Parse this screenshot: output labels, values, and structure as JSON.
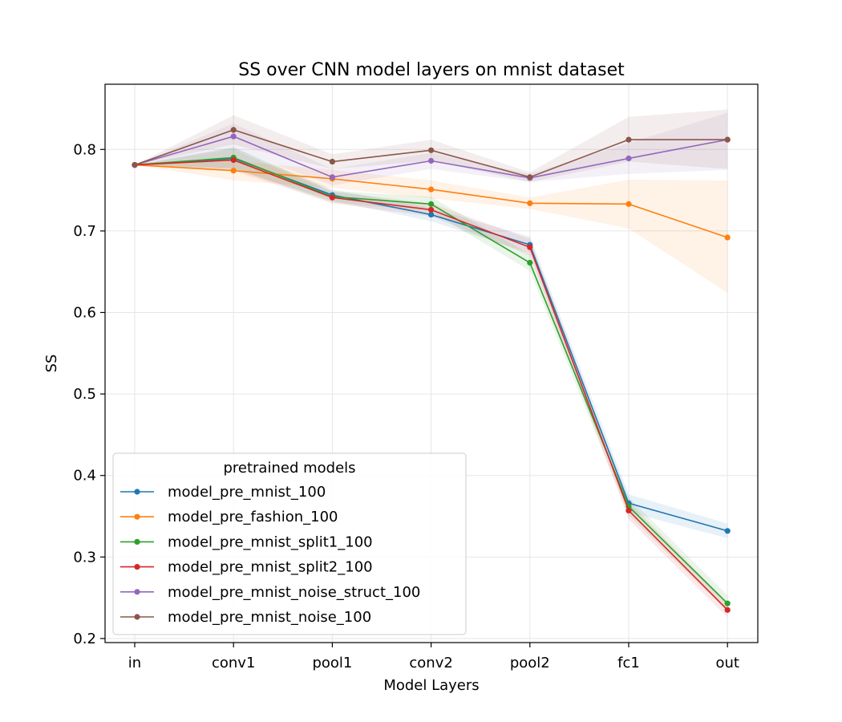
{
  "chart_data": {
    "type": "line",
    "title": "SS over CNN model layers on mnist dataset",
    "xlabel": "Model Layers",
    "ylabel": "SS",
    "categories": [
      "in",
      "conv1",
      "pool1",
      "conv2",
      "pool2",
      "fc1",
      "out"
    ],
    "ylim": [
      0.195,
      0.88
    ],
    "yticks": [
      0.2,
      0.3,
      0.4,
      0.5,
      0.6,
      0.7,
      0.8
    ],
    "grid": true,
    "legend": {
      "title": "pretrained models",
      "placement": "lower-left"
    },
    "series": [
      {
        "name": "model_pre_mnist_100",
        "color": "#1f77b4",
        "values": [
          0.781,
          0.789,
          0.744,
          0.72,
          0.683,
          0.366,
          0.332
        ],
        "lower": [
          0.781,
          0.776,
          0.737,
          0.712,
          0.673,
          0.355,
          0.323
        ],
        "upper": [
          0.781,
          0.802,
          0.751,
          0.728,
          0.693,
          0.377,
          0.341
        ]
      },
      {
        "name": "model_pre_fashion_100",
        "color": "#ff7f0e",
        "values": [
          0.781,
          0.774,
          0.764,
          0.751,
          0.734,
          0.733,
          0.692
        ],
        "lower": [
          0.781,
          0.762,
          0.753,
          0.74,
          0.727,
          0.703,
          0.624
        ],
        "upper": [
          0.781,
          0.786,
          0.775,
          0.762,
          0.741,
          0.763,
          0.762
        ]
      },
      {
        "name": "model_pre_mnist_split1_100",
        "color": "#2ca02c",
        "values": [
          0.781,
          0.79,
          0.742,
          0.733,
          0.661,
          0.362,
          0.243
        ],
        "lower": [
          0.781,
          0.777,
          0.735,
          0.724,
          0.651,
          0.351,
          0.233
        ],
        "upper": [
          0.781,
          0.803,
          0.749,
          0.742,
          0.671,
          0.373,
          0.253
        ]
      },
      {
        "name": "model_pre_mnist_split2_100",
        "color": "#d62728",
        "values": [
          0.781,
          0.787,
          0.741,
          0.726,
          0.68,
          0.357,
          0.235
        ],
        "lower": [
          0.781,
          0.774,
          0.734,
          0.718,
          0.67,
          0.346,
          0.226
        ],
        "upper": [
          0.781,
          0.8,
          0.748,
          0.734,
          0.69,
          0.368,
          0.244
        ]
      },
      {
        "name": "model_pre_mnist_noise_struct_100",
        "color": "#9467bd",
        "values": [
          0.781,
          0.816,
          0.766,
          0.786,
          0.765,
          0.789,
          0.812
        ],
        "lower": [
          0.781,
          0.8,
          0.756,
          0.776,
          0.76,
          0.77,
          0.775
        ],
        "upper": [
          0.781,
          0.832,
          0.776,
          0.796,
          0.77,
          0.808,
          0.845
        ]
      },
      {
        "name": "model_pre_mnist_noise_100",
        "color": "#8c564b",
        "values": [
          0.781,
          0.824,
          0.785,
          0.799,
          0.766,
          0.812,
          0.812
        ],
        "lower": [
          0.781,
          0.806,
          0.776,
          0.786,
          0.76,
          0.785,
          0.776
        ],
        "upper": [
          0.781,
          0.842,
          0.794,
          0.812,
          0.772,
          0.84,
          0.849
        ]
      }
    ]
  }
}
